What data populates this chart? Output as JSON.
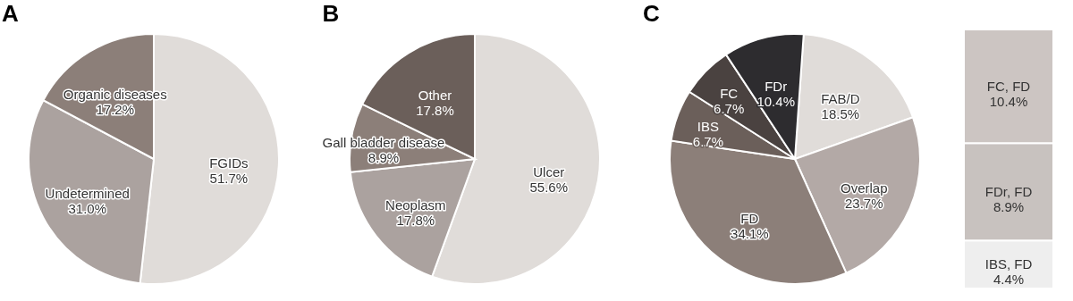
{
  "chart_data": [
    {
      "type": "pie",
      "title": "A",
      "categories": [
        "FGIDs",
        "Undetermined",
        "Organic diseases"
      ],
      "values": [
        51.7,
        31.0,
        17.2
      ],
      "value_labels": [
        "51.7%",
        "31.0%",
        "17.2%"
      ],
      "colors": [
        "#e0dcd9",
        "#aba29f",
        "#8c7f79"
      ]
    },
    {
      "type": "pie",
      "title": "B",
      "categories": [
        "Ulcer",
        "Neoplasm",
        "Gall bladder disease",
        "Other"
      ],
      "values": [
        55.6,
        17.8,
        8.9,
        17.8
      ],
      "value_labels": [
        "55.6%",
        "17.8%",
        "8.9%",
        "17.8%"
      ],
      "colors": [
        "#e0dcd9",
        "#aba29f",
        "#8c7f79",
        "#6b5f5a"
      ]
    },
    {
      "type": "pie",
      "title": "C",
      "categories": [
        "FAB/D",
        "Overlap",
        "FD",
        "IBS",
        "FC",
        "FDr"
      ],
      "values": [
        18.5,
        23.7,
        34.1,
        6.7,
        6.7,
        10.4
      ],
      "value_labels": [
        "18.5%",
        "23.7%",
        "34.1%",
        "6.7%",
        "6.7%",
        "10.4%"
      ],
      "colors": [
        "#e0dcd9",
        "#b3a9a6",
        "#8c7f79",
        "#6b5f5a",
        "#4a4240",
        "#2d2c2f"
      ]
    },
    {
      "type": "bar",
      "stacked": true,
      "categories": [
        null
      ],
      "series": [
        {
          "name": "IBS, FD",
          "color": "#eeeeee",
          "values": [
            4.4
          ],
          "value_labels": [
            "4.4%"
          ]
        },
        {
          "name": "FDr, FD",
          "color": "#c8c2bf",
          "values": [
            8.9
          ],
          "value_labels": [
            "8.9%"
          ]
        },
        {
          "name": "FC, FD",
          "color": "#ccc5c2",
          "values": [
            10.4
          ],
          "value_labels": [
            "10.4%"
          ]
        }
      ]
    }
  ]
}
